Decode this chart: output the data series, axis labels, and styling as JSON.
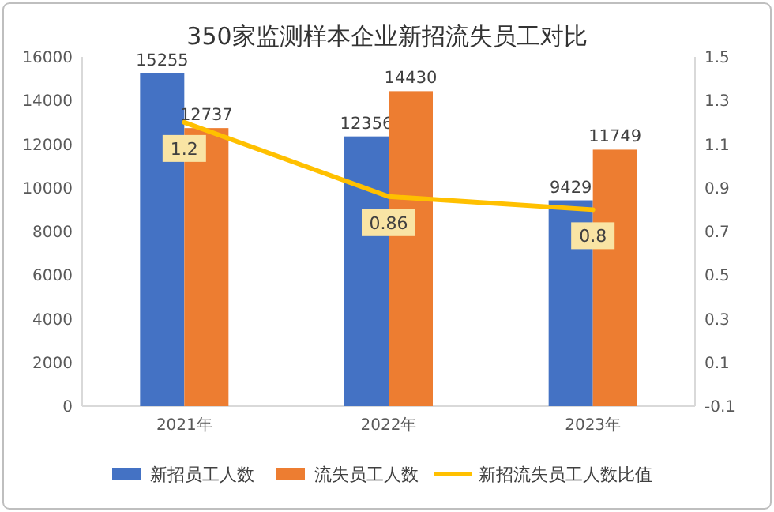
{
  "chart_data": {
    "type": "bar",
    "title": "350家监测样本企业新招流失员工对比",
    "categories": [
      "2021年",
      "2022年",
      "2023年"
    ],
    "series": [
      {
        "name": "新招员工人数",
        "color": "#4472c4",
        "values": [
          15255,
          12356,
          9429
        ]
      },
      {
        "name": "流失员工人数",
        "color": "#ed7d31",
        "values": [
          12737,
          14430,
          11749
        ]
      },
      {
        "name": "新招流失员工人数比值",
        "type": "line",
        "axis": "y2",
        "color": "#ffc000",
        "values": [
          1.2,
          0.86,
          0.8
        ]
      }
    ],
    "ylim": [
      0,
      16000
    ],
    "yticks": [
      0,
      2000,
      4000,
      6000,
      8000,
      10000,
      12000,
      14000,
      16000
    ],
    "y2lim": [
      -0.1,
      1.5
    ],
    "y2ticks": [
      -0.1,
      0.1,
      0.3,
      0.5,
      0.7,
      0.9,
      1.1,
      1.3,
      1.5
    ],
    "data_labels": true,
    "legend": "bottom"
  }
}
